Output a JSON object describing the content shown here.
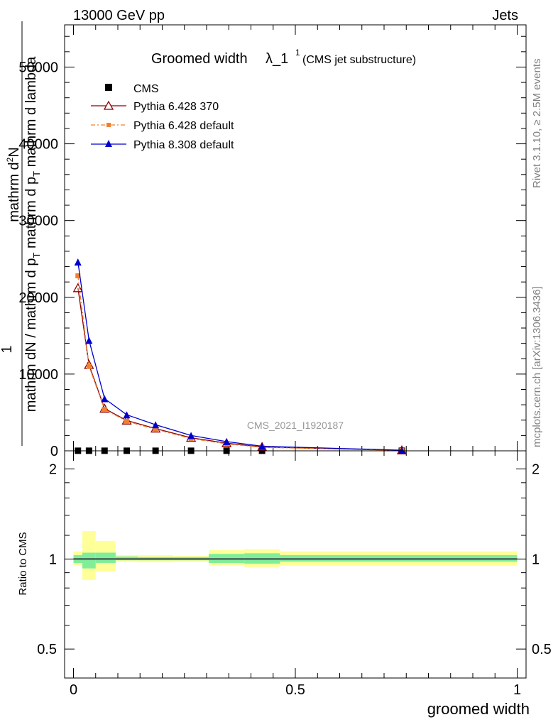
{
  "header": {
    "left": "13000 GeV pp",
    "right": "Jets"
  },
  "side_labels": {
    "rivet": "Rivet 3.1.10, ≥ 2.5M events",
    "mcplots": "mcplots.cern.ch [arXiv:1306.3436]"
  },
  "chart_data": {
    "type": "line",
    "title_main": "Groomed width",
    "title_symbol": "λ_1",
    "title_sup": "1",
    "title_sub": "(CMS jet substructure)",
    "watermark": "CMS_2021_I1920187",
    "xlabel": "groomed width",
    "ylabel_top": "1",
    "ylabel_numerator": "mathrm d",
    "ylabel_sup": "2",
    "ylabel_numerator_end": "N",
    "ylabel_denominator": "mathrm dN / mathrm d p",
    "ylabel_denominator_sub": "T",
    "ylabel_denominator_end": " mathrm d p",
    "ylabel_denominator_sub2": "T",
    "ylabel_denominator_tail": " mathrm d lambda",
    "ratio_ylabel": "Ratio to CMS",
    "xlim": [
      -0.02,
      1.02
    ],
    "ylim": [
      0,
      55500
    ],
    "ratio_ylim": [
      0.4,
      2.3
    ],
    "x_ticks": [
      {
        "value": 0,
        "label": "0"
      },
      {
        "value": 0.5,
        "label": "0.5"
      },
      {
        "value": 1,
        "label": "1"
      }
    ],
    "y_ticks": [
      {
        "value": 0,
        "label": "0"
      },
      {
        "value": 10000,
        "label": "10000"
      },
      {
        "value": 20000,
        "label": "20000"
      },
      {
        "value": 30000,
        "label": "30000"
      },
      {
        "value": 40000,
        "label": "40000"
      },
      {
        "value": 50000,
        "label": "50000"
      }
    ],
    "ratio_y_ticks": [
      {
        "value": 0.5,
        "label": "0.5"
      },
      {
        "value": 1,
        "label": "1"
      },
      {
        "value": 2,
        "label": "2"
      }
    ],
    "legend": [
      {
        "name": "CMS",
        "color": "#000000",
        "marker": "square",
        "style": "none"
      },
      {
        "name": "Pythia 6.428 370",
        "color": "#8b0000",
        "marker": "open-triangle",
        "style": "solid"
      },
      {
        "name": "Pythia 6.428 default",
        "color": "#f08030",
        "marker": "square-small",
        "style": "dashdot"
      },
      {
        "name": "Pythia 8.308 default",
        "color": "#0000cd",
        "marker": "triangle",
        "style": "solid"
      }
    ],
    "series": [
      {
        "name": "CMS",
        "x": [
          0.01,
          0.035,
          0.07,
          0.12,
          0.185,
          0.265,
          0.345,
          0.425,
          0.74
        ],
        "values": [
          12,
          12,
          12,
          12,
          12,
          12,
          12,
          12,
          12
        ]
      },
      {
        "name": "Pythia 6.428 370",
        "x": [
          0.01,
          0.035,
          0.07,
          0.12,
          0.185,
          0.265,
          0.345,
          0.425,
          0.74
        ],
        "values": [
          21200,
          11200,
          5500,
          3950,
          2900,
          1700,
          1000,
          500,
          60
        ]
      },
      {
        "name": "Pythia 6.428 default",
        "x": [
          0.01,
          0.035,
          0.07,
          0.12,
          0.185,
          0.265,
          0.345,
          0.425,
          0.74
        ],
        "values": [
          22800,
          11000,
          5400,
          3850,
          2800,
          1600,
          900,
          450,
          50
        ]
      },
      {
        "name": "Pythia 8.308 default",
        "x": [
          0.01,
          0.035,
          0.07,
          0.12,
          0.185,
          0.265,
          0.345,
          0.425,
          0.74
        ],
        "values": [
          24600,
          14400,
          6800,
          4700,
          3400,
          2000,
          1200,
          600,
          80
        ]
      }
    ],
    "ratio_bands": [
      {
        "x0": 0.0,
        "x1": 0.02,
        "inner": [
          0.97,
          1.03
        ],
        "outer": [
          0.95,
          1.06
        ]
      },
      {
        "x0": 0.02,
        "x1": 0.05,
        "inner": [
          0.93,
          1.05
        ],
        "outer": [
          0.85,
          1.24
        ]
      },
      {
        "x0": 0.05,
        "x1": 0.095,
        "inner": [
          0.97,
          1.05
        ],
        "outer": [
          0.91,
          1.15
        ]
      },
      {
        "x0": 0.095,
        "x1": 0.145,
        "inner": [
          0.99,
          1.02
        ],
        "outer": [
          0.98,
          1.03
        ]
      },
      {
        "x0": 0.145,
        "x1": 0.225,
        "inner": [
          0.99,
          1.015
        ],
        "outer": [
          0.975,
          1.03
        ]
      },
      {
        "x0": 0.225,
        "x1": 0.305,
        "inner": [
          0.99,
          1.015
        ],
        "outer": [
          0.98,
          1.025
        ]
      },
      {
        "x0": 0.305,
        "x1": 0.385,
        "inner": [
          0.97,
          1.04
        ],
        "outer": [
          0.95,
          1.07
        ]
      },
      {
        "x0": 0.385,
        "x1": 0.465,
        "inner": [
          0.965,
          1.045
        ],
        "outer": [
          0.94,
          1.08
        ]
      },
      {
        "x0": 0.465,
        "x1": 1.0,
        "inner": [
          0.98,
          1.03
        ],
        "outer": [
          0.95,
          1.06
        ]
      }
    ],
    "ratio_lines": [
      {
        "name": "Pythia 6.428 370",
        "value": 1.0
      },
      {
        "name": "Pythia 6.428 default",
        "value": 1.0
      },
      {
        "name": "Pythia 8.308 default",
        "value": 1.0
      }
    ],
    "colors": {
      "band_outer": "#ffff99",
      "band_inner": "#80ee99",
      "ratio_line": "#000000"
    }
  }
}
